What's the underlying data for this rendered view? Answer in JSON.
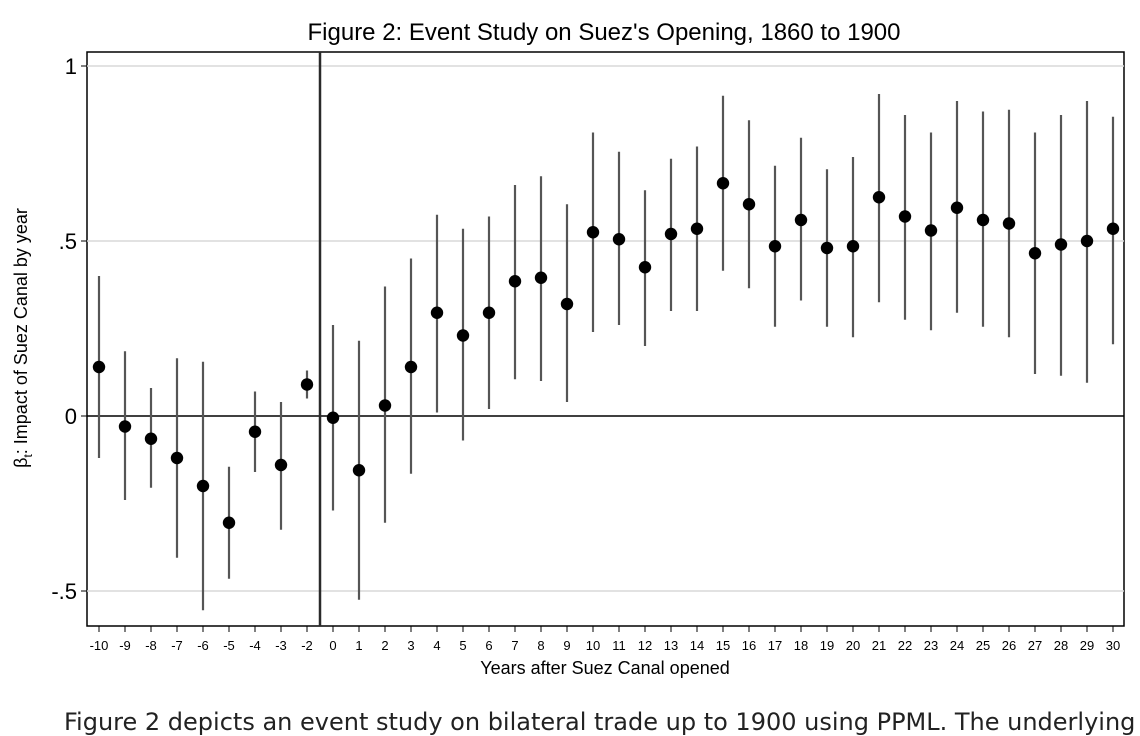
{
  "chart_data": {
    "type": "scatter",
    "title": "Figure 2: Event Study on Suez's Opening, 1860 to 1900",
    "xlabel": "Years after Suez Canal opened",
    "ylabel": "βt: Impact of Suez Canal by year",
    "ylabel_main": "β",
    "ylabel_sub": "t",
    "ylabel_rest": ": Impact of Suez Canal by year",
    "ylim": [
      -0.6,
      1.05
    ],
    "yticks": [
      1,
      0.5,
      0,
      -0.5
    ],
    "ytick_labels": [
      "1",
      ".5",
      "0",
      "-.5"
    ],
    "grid": true,
    "reference_lines": {
      "y": 0,
      "x_between": [
        -2,
        0
      ]
    },
    "categories": [
      "-10",
      "-9",
      "-8",
      "-7",
      "-6",
      "-5",
      "-4",
      "-3",
      "-2",
      "0",
      "1",
      "2",
      "3",
      "4",
      "5",
      "6",
      "7",
      "8",
      "9",
      "10",
      "11",
      "12",
      "13",
      "14",
      "15",
      "16",
      "17",
      "18",
      "19",
      "20",
      "21",
      "22",
      "23",
      "24",
      "25",
      "26",
      "27",
      "28",
      "29",
      "30"
    ],
    "series": [
      {
        "values": [
          0.14,
          -0.03,
          -0.065,
          -0.12,
          -0.2,
          -0.305,
          -0.045,
          -0.14,
          0.09,
          -0.005,
          -0.155,
          0.03,
          0.14,
          0.295,
          0.23,
          0.295,
          0.385,
          0.395,
          0.32,
          0.525,
          0.505,
          0.425,
          0.52,
          0.535,
          0.665,
          0.605,
          0.485,
          0.56,
          0.48,
          0.485,
          0.625,
          0.57,
          0.53,
          0.595,
          0.56,
          0.55,
          0.465,
          0.49,
          0.5,
          0.535
        ],
        "lower": [
          -0.12,
          -0.24,
          -0.205,
          -0.405,
          -0.555,
          -0.465,
          -0.16,
          -0.325,
          0.05,
          -0.27,
          -0.525,
          -0.305,
          -0.165,
          0.01,
          -0.07,
          0.02,
          0.105,
          0.1,
          0.04,
          0.24,
          0.26,
          0.2,
          0.3,
          0.3,
          0.415,
          0.365,
          0.255,
          0.33,
          0.255,
          0.225,
          0.325,
          0.275,
          0.245,
          0.295,
          0.255,
          0.225,
          0.12,
          0.115,
          0.095,
          0.205
        ],
        "upper": [
          0.4,
          0.185,
          0.08,
          0.165,
          0.155,
          -0.145,
          0.07,
          0.04,
          0.13,
          0.26,
          0.215,
          0.37,
          0.45,
          0.575,
          0.535,
          0.57,
          0.66,
          0.685,
          0.605,
          0.81,
          0.755,
          0.645,
          0.735,
          0.77,
          0.915,
          0.845,
          0.715,
          0.795,
          0.705,
          0.74,
          0.92,
          0.86,
          0.81,
          0.9,
          0.87,
          0.875,
          0.81,
          0.86,
          0.9,
          0.855
        ]
      }
    ]
  },
  "caption": "Figure 2 depicts an event study on bilateral trade up to 1900 using PPML. The underlying"
}
